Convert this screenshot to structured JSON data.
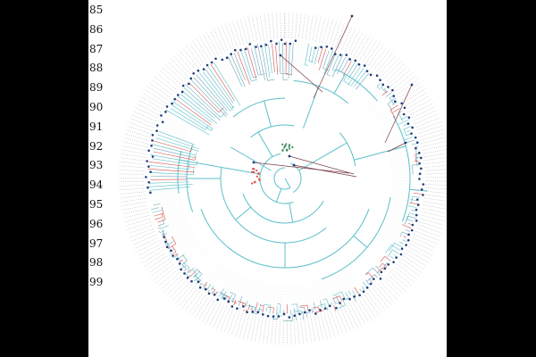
{
  "row_labels": [
    "85",
    "86",
    "87",
    "88",
    "89",
    "90",
    "91",
    "92",
    "93",
    "94",
    "95",
    "96",
    "97",
    "98",
    "99"
  ],
  "tree": {
    "type": "circular-phylogenetic-tree",
    "branch_color": "#5bbfc9",
    "highlight_color": "#d9534f",
    "outlier_color": "#7a3b46",
    "node_color": "#1f3d7a",
    "leaf_label_color": "#555555",
    "background": "#ffffff"
  }
}
